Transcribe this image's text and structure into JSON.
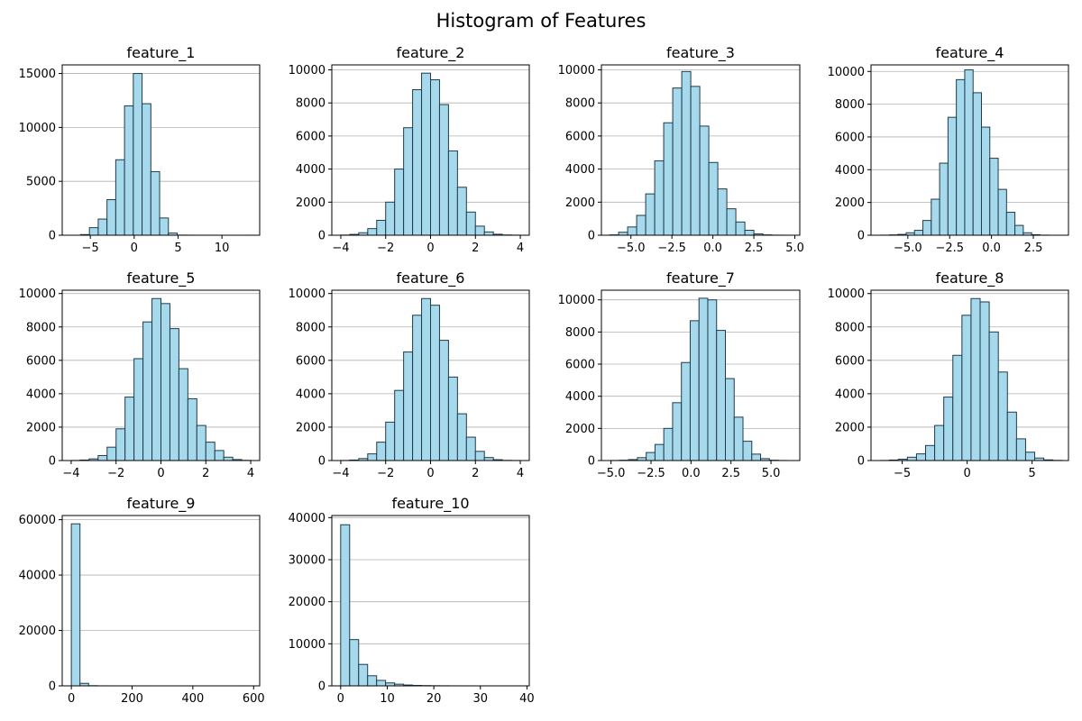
{
  "title": "Histogram of Features",
  "colors": {
    "bar_fill": "#a7d9ec",
    "bar_edge": "#1f3b4a",
    "grid": "#b0b0b0"
  },
  "chart_data": [
    {
      "type": "bar",
      "title": "feature_1",
      "xlim": [
        -8.2,
        14.3
      ],
      "ylim": [
        0,
        15800
      ],
      "xticks": [
        -5,
        0,
        5,
        10
      ],
      "xtick_labels": [
        "−5",
        "0",
        "5",
        "10"
      ],
      "yticks": [
        0,
        5000,
        10000,
        15000
      ],
      "ytick_labels": [
        "0",
        "5000",
        "10000",
        "15000"
      ],
      "grid": "y",
      "bin_start": -6.1,
      "bin_width": 1.0,
      "values": [
        60,
        700,
        1500,
        3300,
        7000,
        12000,
        15000,
        12200,
        5900,
        1600,
        200,
        10,
        5,
        2,
        1,
        1,
        0,
        0,
        0,
        1
      ]
    },
    {
      "type": "bar",
      "title": "feature_2",
      "xlim": [
        -4.4,
        4.4
      ],
      "ylim": [
        0,
        10300
      ],
      "xticks": [
        -4,
        -2,
        0,
        2,
        4
      ],
      "xtick_labels": [
        "−4",
        "−2",
        "0",
        "2",
        "4"
      ],
      "yticks": [
        0,
        2000,
        4000,
        6000,
        8000,
        10000
      ],
      "ytick_labels": [
        "0",
        "2000",
        "4000",
        "6000",
        "8000",
        "10000"
      ],
      "grid": "y",
      "bin_start": -4.0,
      "bin_width": 0.4,
      "values": [
        10,
        50,
        150,
        400,
        900,
        2000,
        4000,
        6500,
        8800,
        9800,
        9400,
        7900,
        5100,
        2900,
        1400,
        550,
        200,
        60,
        15,
        5
      ]
    },
    {
      "type": "bar",
      "title": "feature_3",
      "xlim": [
        -6.8,
        5.3
      ],
      "ylim": [
        0,
        10300
      ],
      "xticks": [
        -5,
        -2.5,
        0,
        2.5,
        5
      ],
      "xtick_labels": [
        "−5.0",
        "−2.5",
        "0.0",
        "2.5",
        "5.0"
      ],
      "yticks": [
        0,
        2000,
        4000,
        6000,
        8000,
        10000
      ],
      "ytick_labels": [
        "0",
        "2000",
        "4000",
        "6000",
        "8000",
        "10000"
      ],
      "grid": "y",
      "bin_start": -6.3,
      "bin_width": 0.55,
      "values": [
        20,
        180,
        500,
        1200,
        2500,
        4500,
        6800,
        8900,
        9900,
        9000,
        6600,
        4400,
        2800,
        1600,
        800,
        300,
        80,
        20,
        5,
        2
      ]
    },
    {
      "type": "bar",
      "title": "feature_4",
      "xlim": [
        -7.2,
        4.6
      ],
      "ylim": [
        0,
        10400
      ],
      "xticks": [
        -5,
        -2.5,
        0,
        2.5
      ],
      "xtick_labels": [
        "−5.0",
        "−2.5",
        "0.0",
        "2.5"
      ],
      "yticks": [
        0,
        2000,
        4000,
        6000,
        8000,
        10000
      ],
      "ytick_labels": [
        "0",
        "2000",
        "4000",
        "6000",
        "8000",
        "10000"
      ],
      "grid": "y",
      "bin_start": -6.6,
      "bin_width": 0.5,
      "values": [
        5,
        20,
        50,
        150,
        300,
        900,
        2200,
        4400,
        7200,
        9500,
        10100,
        8700,
        6600,
        4700,
        2800,
        1400,
        600,
        150,
        30,
        5
      ]
    },
    {
      "type": "bar",
      "title": "feature_5",
      "xlim": [
        -4.4,
        4.4
      ],
      "ylim": [
        0,
        10200
      ],
      "xticks": [
        -4,
        -2,
        0,
        2,
        4
      ],
      "xtick_labels": [
        "−4",
        "−2",
        "0",
        "2",
        "4"
      ],
      "yticks": [
        0,
        2000,
        4000,
        6000,
        8000,
        10000
      ],
      "ytick_labels": [
        "0",
        "2000",
        "4000",
        "6000",
        "8000",
        "10000"
      ],
      "grid": "y",
      "bin_start": -4.0,
      "bin_width": 0.4,
      "values": [
        5,
        30,
        100,
        300,
        800,
        1900,
        3800,
        6100,
        8300,
        9700,
        9400,
        7900,
        5500,
        3700,
        2100,
        1100,
        600,
        200,
        60,
        10
      ]
    },
    {
      "type": "bar",
      "title": "feature_6",
      "xlim": [
        -4.4,
        4.4
      ],
      "ylim": [
        0,
        10200
      ],
      "xticks": [
        -4,
        -2,
        0,
        2,
        4
      ],
      "xtick_labels": [
        "−4",
        "−2",
        "0",
        "2",
        "4"
      ],
      "yticks": [
        0,
        2000,
        4000,
        6000,
        8000,
        10000
      ],
      "ytick_labels": [
        "0",
        "2000",
        "4000",
        "6000",
        "8000",
        "10000"
      ],
      "grid": "y",
      "bin_start": -4.0,
      "bin_width": 0.4,
      "values": [
        5,
        30,
        120,
        400,
        1100,
        2300,
        4200,
        6500,
        8700,
        9700,
        9300,
        7200,
        5000,
        2800,
        1400,
        550,
        180,
        50,
        10,
        3
      ]
    },
    {
      "type": "bar",
      "title": "feature_7",
      "xlim": [
        -5.6,
        6.8
      ],
      "ylim": [
        0,
        10600
      ],
      "xticks": [
        -5,
        -2.5,
        0,
        2.5,
        5
      ],
      "xtick_labels": [
        "−5.0",
        "−2.5",
        "0.0",
        "2.5",
        "5.0"
      ],
      "yticks": [
        0,
        2000,
        4000,
        6000,
        8000,
        10000
      ],
      "ytick_labels": [
        "0",
        "2000",
        "4000",
        "6000",
        "8000",
        "10000"
      ],
      "grid": "y",
      "bin_start": -5.0,
      "bin_width": 0.55,
      "values": [
        5,
        20,
        60,
        180,
        500,
        1000,
        2000,
        3600,
        6100,
        8700,
        10100,
        10000,
        8100,
        5100,
        2700,
        1200,
        400,
        120,
        20,
        5
      ]
    },
    {
      "type": "bar",
      "title": "feature_8",
      "xlim": [
        -7.4,
        7.8
      ],
      "ylim": [
        0,
        10200
      ],
      "xticks": [
        -5,
        0,
        5
      ],
      "xtick_labels": [
        "−5",
        "0",
        "5"
      ],
      "yticks": [
        0,
        2000,
        4000,
        6000,
        8000,
        10000
      ],
      "ytick_labels": [
        "0",
        "2000",
        "4000",
        "6000",
        "8000",
        "10000"
      ],
      "grid": "y",
      "bin_start": -6.7,
      "bin_width": 0.7,
      "values": [
        5,
        30,
        80,
        200,
        400,
        900,
        2100,
        3800,
        6300,
        8700,
        9700,
        9500,
        7700,
        5300,
        2900,
        1300,
        500,
        150,
        40,
        10
      ]
    },
    {
      "type": "bar",
      "title": "feature_9",
      "xlim": [
        -30,
        620
      ],
      "ylim": [
        0,
        61500
      ],
      "xticks": [
        0,
        200,
        400,
        600
      ],
      "xtick_labels": [
        "0",
        "200",
        "400",
        "600"
      ],
      "yticks": [
        0,
        20000,
        40000,
        60000
      ],
      "ytick_labels": [
        "0",
        "20000",
        "40000",
        "60000"
      ],
      "grid": "y",
      "bin_start": 0,
      "bin_width": 28.5,
      "values": [
        58500,
        900,
        60,
        10,
        5,
        3,
        2,
        1,
        1,
        0,
        0,
        0,
        0,
        0,
        0,
        0,
        0,
        0,
        0,
        1
      ]
    },
    {
      "type": "bar",
      "title": "feature_10",
      "xlim": [
        -1.9,
        40.5
      ],
      "ylim": [
        0,
        40500
      ],
      "xticks": [
        0,
        10,
        20,
        30,
        40
      ],
      "xtick_labels": [
        "0",
        "10",
        "20",
        "30",
        "40"
      ],
      "yticks": [
        0,
        10000,
        20000,
        30000,
        40000
      ],
      "ytick_labels": [
        "0",
        "10000",
        "20000",
        "30000",
        "40000"
      ],
      "grid": "y",
      "bin_start": 0,
      "bin_width": 1.93,
      "values": [
        38300,
        11000,
        5100,
        2400,
        1300,
        700,
        400,
        200,
        100,
        60,
        30,
        20,
        10,
        5,
        3,
        2,
        1,
        1,
        1,
        1
      ]
    }
  ]
}
